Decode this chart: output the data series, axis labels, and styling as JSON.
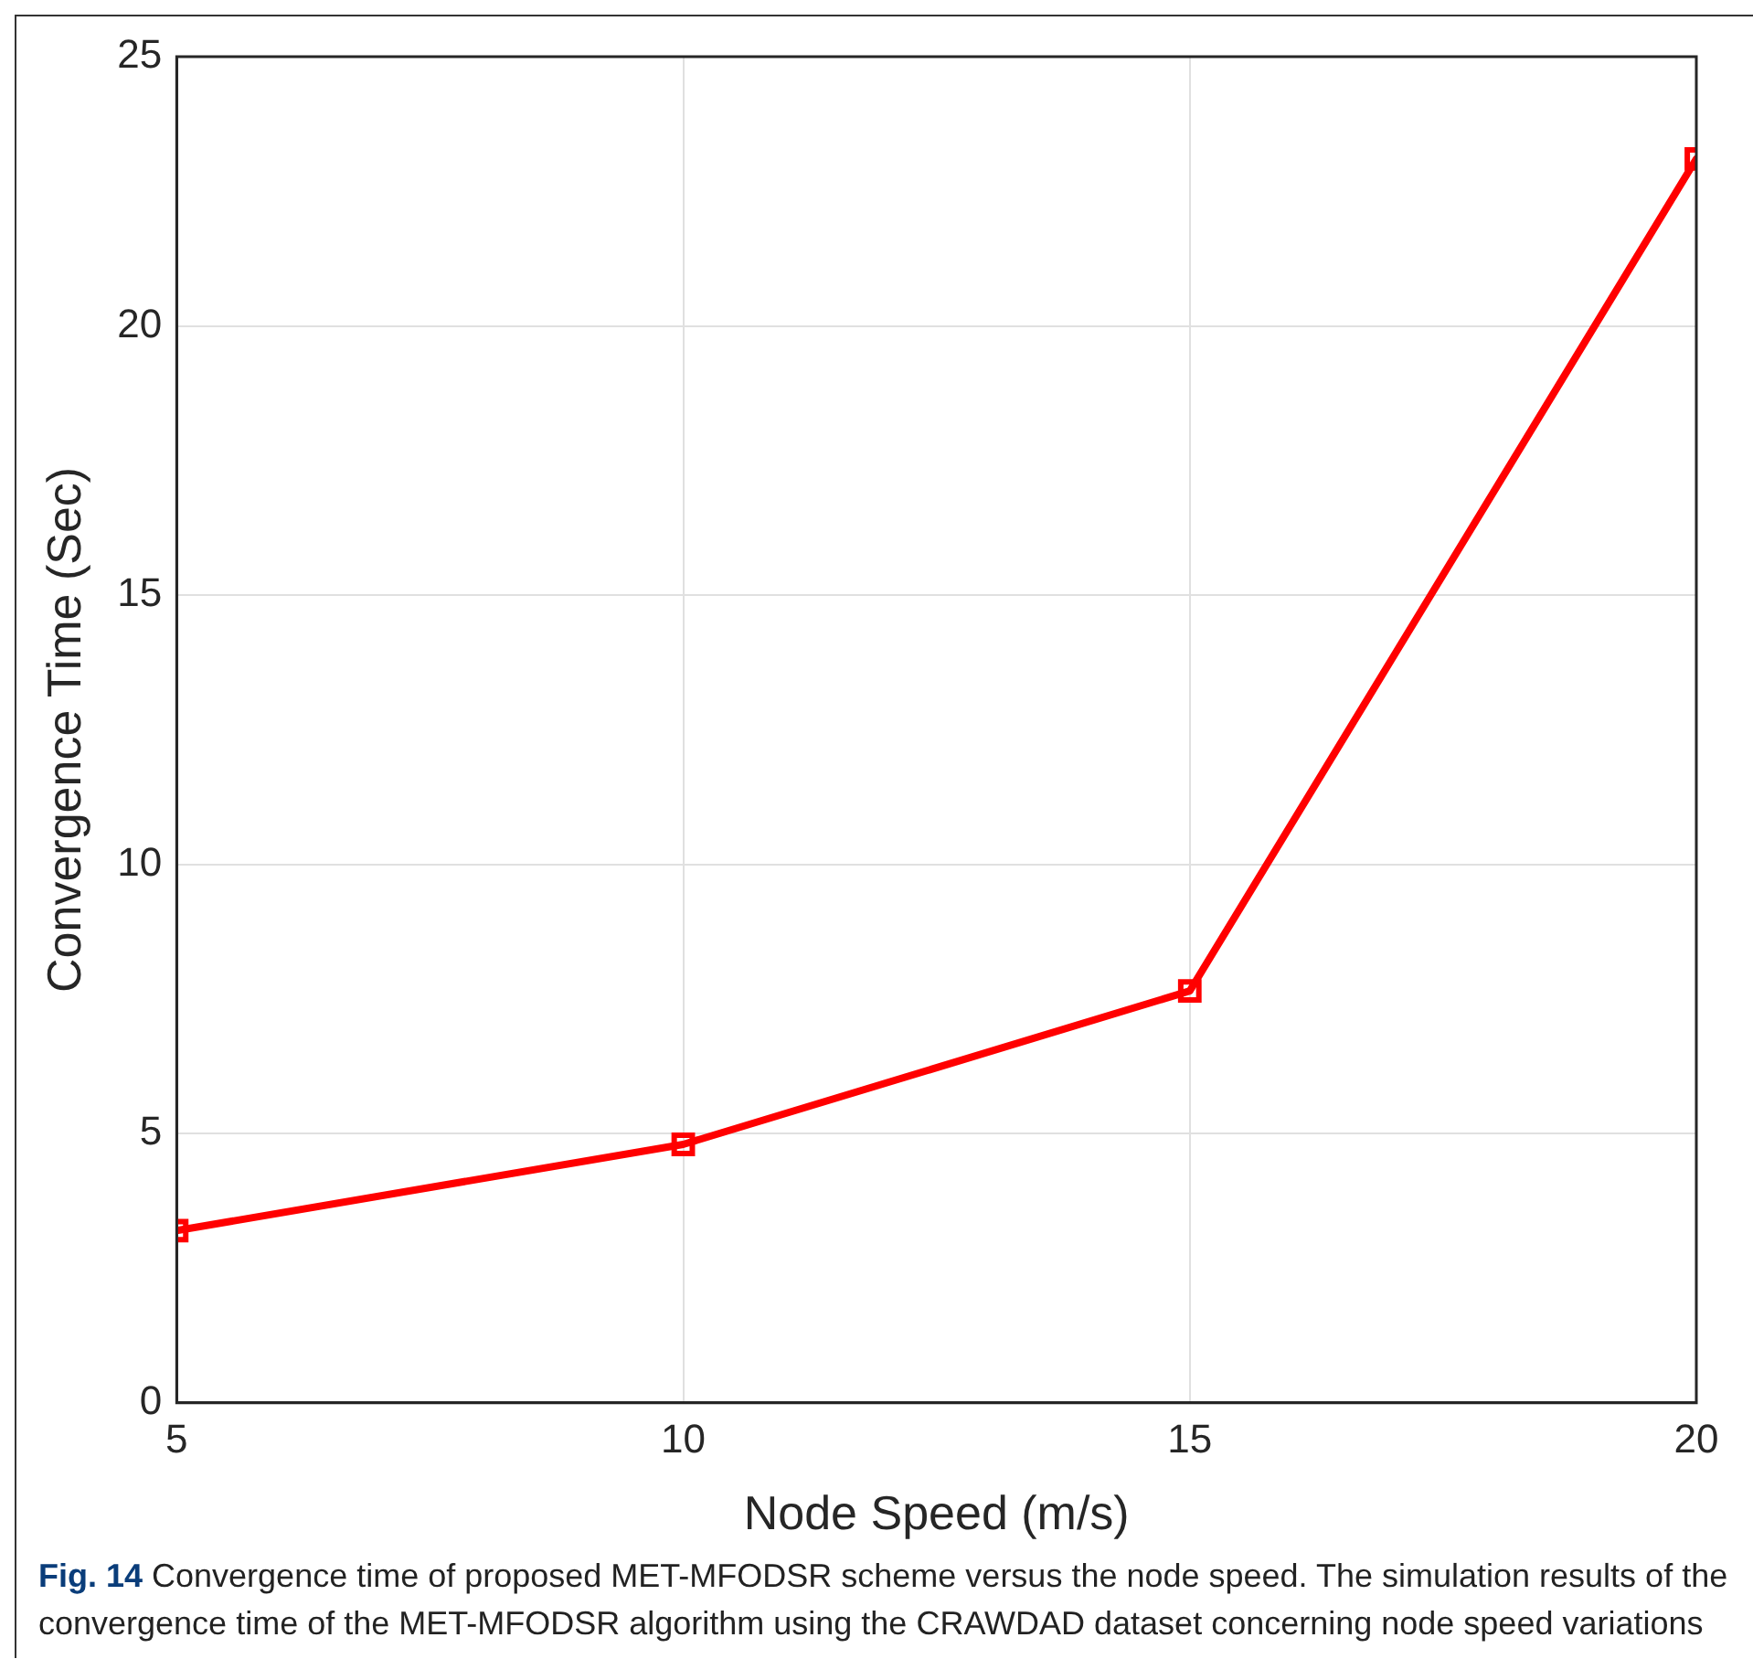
{
  "chart_data": {
    "type": "line",
    "xlabel": "Node Speed (m/s)",
    "ylabel": "Convergence Time (Sec)",
    "x": [
      5,
      10,
      15,
      20
    ],
    "series": [
      {
        "color": "#ff0000",
        "values": [
          3.2,
          4.8,
          7.65,
          23.1
        ]
      }
    ],
    "xlim": [
      5,
      20
    ],
    "xticks": [
      5,
      10,
      15,
      20
    ],
    "ylim": [
      0,
      25
    ],
    "yticks": [
      0,
      5,
      10,
      15,
      20,
      25
    ],
    "grid": true,
    "marker": "square",
    "line_style": "solid",
    "annotations": [
      "Fig. 14",
      "Convergence time of proposed MET-MFODSR scheme versus the node speed. The simulation results of the convergence time of the MET-MFODSR algorithm using the CRAWDAD dataset concerning node speed variations"
    ]
  }
}
